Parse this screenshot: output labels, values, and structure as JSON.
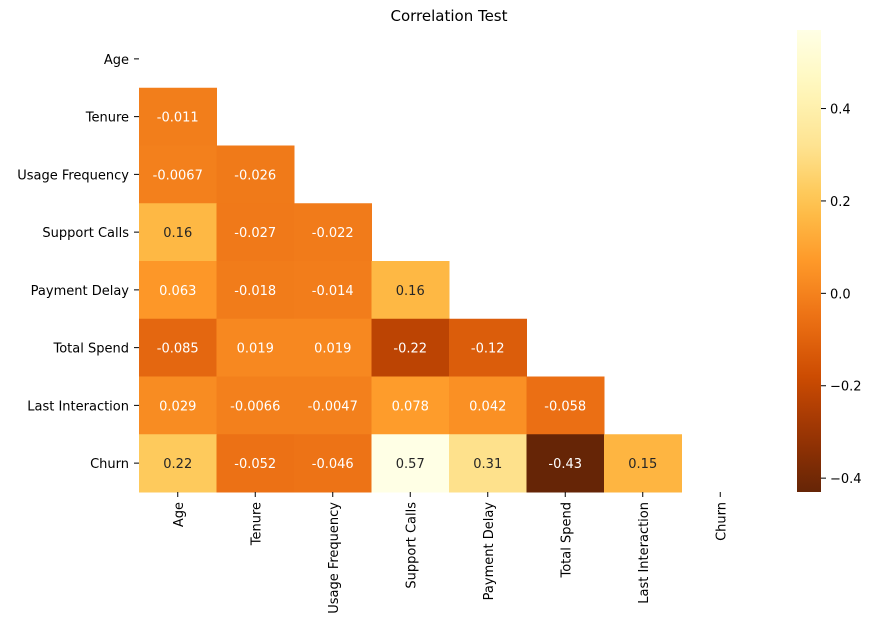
{
  "chart_data": {
    "type": "heatmap",
    "title": "Correlation Test",
    "xlabel": "",
    "ylabel": "",
    "rows": [
      "Age",
      "Tenure",
      "Usage Frequency",
      "Support Calls",
      "Payment Delay",
      "Total Spend",
      "Last Interaction",
      "Churn"
    ],
    "columns": [
      "Age",
      "Tenure",
      "Usage Frequency",
      "Support Calls",
      "Payment Delay",
      "Total Spend",
      "Last Interaction",
      "Churn"
    ],
    "mask": "upper-triangle-including-diagonal",
    "values": [
      [
        null,
        null,
        null,
        null,
        null,
        null,
        null,
        null
      ],
      [
        -0.011,
        null,
        null,
        null,
        null,
        null,
        null,
        null
      ],
      [
        -0.0067,
        -0.026,
        null,
        null,
        null,
        null,
        null,
        null
      ],
      [
        0.16,
        -0.027,
        -0.022,
        null,
        null,
        null,
        null,
        null
      ],
      [
        0.063,
        -0.018,
        -0.014,
        0.16,
        null,
        null,
        null,
        null
      ],
      [
        -0.085,
        0.019,
        0.019,
        -0.22,
        -0.12,
        null,
        null,
        null
      ],
      [
        0.029,
        -0.0066,
        -0.0047,
        0.078,
        0.042,
        -0.058,
        null,
        null
      ],
      [
        0.22,
        -0.052,
        -0.046,
        0.57,
        0.31,
        -0.43,
        0.15,
        null
      ]
    ],
    "labels": [
      [
        null,
        null,
        null,
        null,
        null,
        null,
        null,
        null
      ],
      [
        "-0.011",
        null,
        null,
        null,
        null,
        null,
        null,
        null
      ],
      [
        "-0.0067",
        "-0.026",
        null,
        null,
        null,
        null,
        null,
        null
      ],
      [
        "0.16",
        "-0.027",
        "-0.022",
        null,
        null,
        null,
        null,
        null
      ],
      [
        "0.063",
        "-0.018",
        "-0.014",
        "0.16",
        null,
        null,
        null,
        null
      ],
      [
        "-0.085",
        "0.019",
        "0.019",
        "-0.22",
        "-0.12",
        null,
        null,
        null
      ],
      [
        "0.029",
        "-0.0066",
        "-0.0047",
        "0.078",
        "0.042",
        "-0.058",
        null,
        null
      ],
      [
        "0.22",
        "-0.052",
        "-0.046",
        "0.57",
        "0.31",
        "-0.43",
        "0.15",
        null
      ]
    ],
    "colorbar": {
      "colormap": "YlOrBr_r",
      "vmin": -0.43,
      "vmax": 0.57,
      "ticks": [
        0.4,
        0.2,
        0.0,
        -0.2,
        -0.4
      ],
      "tick_labels": [
        "0.4",
        "0.2",
        "0.0",
        "−0.2",
        "−0.4"
      ]
    }
  }
}
